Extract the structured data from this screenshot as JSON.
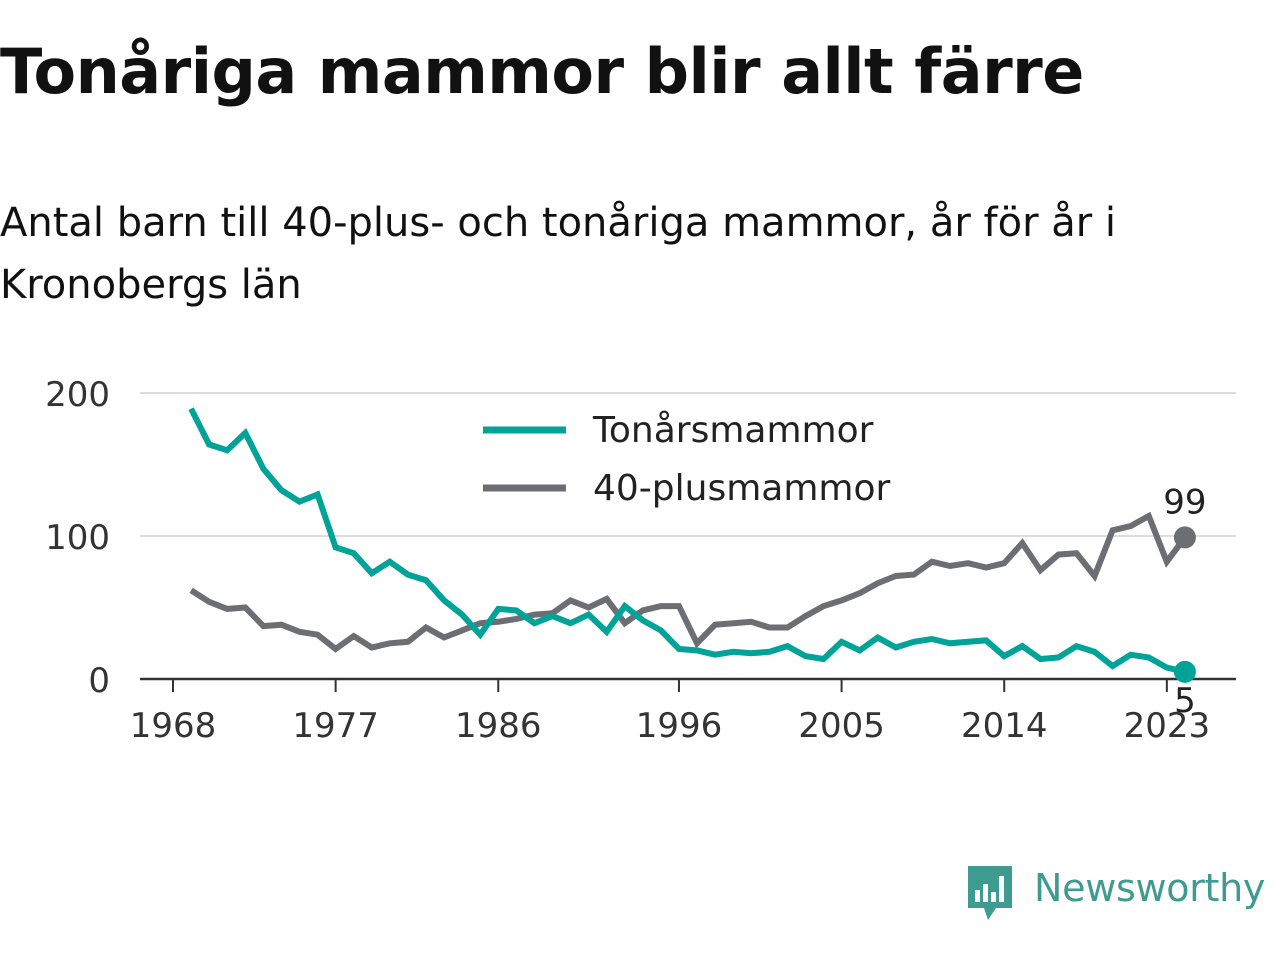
{
  "header": {
    "title": "Tonåriga mammor blir allt färre",
    "subtitle": "Antal barn till 40-plus- och tonåriga mammor, år för år i Kronobergs län"
  },
  "brand": {
    "name": "Newsworthy",
    "color": "#3d9b8f",
    "icon": "newsworthy-logo-icon"
  },
  "chart_data": {
    "type": "line",
    "x": [
      1969,
      1970,
      1971,
      1972,
      1973,
      1974,
      1975,
      1976,
      1977,
      1978,
      1979,
      1980,
      1981,
      1982,
      1983,
      1984,
      1985,
      1986,
      1987,
      1988,
      1989,
      1990,
      1991,
      1992,
      1993,
      1994,
      1995,
      1996,
      1997,
      1998,
      1999,
      2000,
      2001,
      2002,
      2003,
      2004,
      2005,
      2006,
      2007,
      2008,
      2009,
      2010,
      2011,
      2012,
      2013,
      2014,
      2015,
      2016,
      2017,
      2018,
      2019,
      2020,
      2021,
      2022,
      2023,
      2024
    ],
    "series": [
      {
        "name": "Tonårsmammor",
        "color": "#00a398",
        "values": [
          189,
          164,
          160,
          172,
          147,
          132,
          124,
          129,
          92,
          88,
          74,
          82,
          73,
          69,
          55,
          45,
          31,
          49,
          48,
          39,
          44,
          39,
          45,
          33,
          51,
          41,
          34,
          21,
          20,
          17,
          19,
          18,
          19,
          23,
          16,
          14,
          26,
          20,
          29,
          22,
          26,
          28,
          25,
          26,
          27,
          16,
          23,
          14,
          15,
          23,
          19,
          9,
          17,
          15,
          8,
          5
        ]
      },
      {
        "name": "40-plusmammor",
        "color": "#6d6e73",
        "values": [
          62,
          54,
          49,
          50,
          37,
          38,
          33,
          31,
          21,
          30,
          22,
          25,
          26,
          36,
          29,
          34,
          39,
          40,
          42,
          45,
          46,
          55,
          50,
          56,
          39,
          48,
          51,
          51,
          25,
          38,
          39,
          40,
          36,
          36,
          44,
          51,
          55,
          60,
          67,
          72,
          73,
          82,
          79,
          81,
          78,
          81,
          95,
          76,
          87,
          88,
          72,
          104,
          107,
          114,
          82,
          99
        ]
      }
    ],
    "xticks": [
      "1968",
      "1977",
      "1986",
      "1996",
      "2005",
      "2014",
      "2023"
    ],
    "yticks": [
      "0",
      "100",
      "200"
    ],
    "ylim": [
      0,
      200
    ],
    "end_labels": [
      "99",
      "5"
    ],
    "grid": true,
    "legend": "top-center"
  }
}
